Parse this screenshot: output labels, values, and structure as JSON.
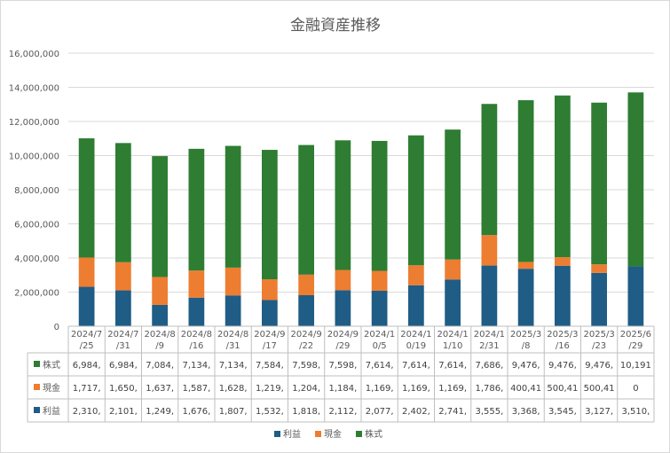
{
  "chart_data": {
    "type": "bar",
    "stacked": true,
    "title": "金融資産推移",
    "xlabel": "",
    "ylabel": "",
    "ylim": [
      0,
      16000000
    ],
    "yticks": [
      0,
      2000000,
      4000000,
      6000000,
      8000000,
      10000000,
      12000000,
      14000000,
      16000000
    ],
    "ytick_labels": [
      "0",
      "2,000,000",
      "4,000,000",
      "6,000,000",
      "8,000,000",
      "10,000,000",
      "12,000,000",
      "14,000,000",
      "16,000,000"
    ],
    "grid": true,
    "legend_position": "bottom",
    "categories": [
      [
        "2024/7",
        "/25"
      ],
      [
        "2024/7",
        "/31"
      ],
      [
        "2024/8",
        "/9"
      ],
      [
        "2024/8",
        "/16"
      ],
      [
        "2024/8",
        "/31"
      ],
      [
        "2024/9",
        "/17"
      ],
      [
        "2024/9",
        "/22"
      ],
      [
        "2024/9",
        "/29"
      ],
      [
        "2024/1",
        "0/5"
      ],
      [
        "2024/1",
        "0/19"
      ],
      [
        "2024/1",
        "1/10"
      ],
      [
        "2024/1",
        "2/31"
      ],
      [
        "2025/3",
        "/8"
      ],
      [
        "2025/3",
        "/16"
      ],
      [
        "2025/3",
        "/23"
      ],
      [
        "2025/6",
        "/29"
      ]
    ],
    "series": [
      {
        "name": "利益",
        "color": "#1f5c86",
        "values": [
          2310000,
          2101000,
          1249000,
          1676000,
          1807000,
          1532000,
          1818000,
          2112000,
          2077000,
          2402000,
          2741000,
          3555000,
          3368000,
          3545000,
          3127000,
          3510000
        ],
        "table_labels": [
          "2,310,",
          "2,101,",
          "1,249,",
          "1,676,",
          "1,807,",
          "1,532,",
          "1,818,",
          "2,112,",
          "2,077,",
          "2,402,",
          "2,741,",
          "3,555,",
          "3,368,",
          "3,545,",
          "3,127,",
          "3,510,"
        ]
      },
      {
        "name": "現金",
        "color": "#ed7d31",
        "values": [
          1717000,
          1650000,
          1637000,
          1587000,
          1628000,
          1219000,
          1204000,
          1184000,
          1169000,
          1169000,
          1169000,
          1786000,
          400410,
          500410,
          500410,
          0
        ],
        "table_labels": [
          "1,717,",
          "1,650,",
          "1,637,",
          "1,587,",
          "1,628,",
          "1,219,",
          "1,204,",
          "1,184,",
          "1,169,",
          "1,169,",
          "1,169,",
          "1,786,",
          "400,41",
          "500,41",
          "500,41",
          "0"
        ]
      },
      {
        "name": "株式",
        "color": "#2e7d32",
        "values": [
          6984000,
          6984000,
          7084000,
          7134000,
          7134000,
          7584000,
          7598000,
          7598000,
          7614000,
          7614000,
          7614000,
          7686000,
          9476000,
          9476000,
          9476000,
          10191000
        ],
        "table_labels": [
          "6,984,",
          "6,984,",
          "7,084,",
          "7,134,",
          "7,134,",
          "7,584,",
          "7,598,",
          "7,598,",
          "7,614,",
          "7,614,",
          "7,614,",
          "7,686,",
          "9,476,",
          "9,476,",
          "9,476,",
          "10,191"
        ]
      }
    ],
    "table_row_order": [
      "株式",
      "現金",
      "利益"
    ],
    "legend_order": [
      "利益",
      "現金",
      "株式"
    ]
  }
}
